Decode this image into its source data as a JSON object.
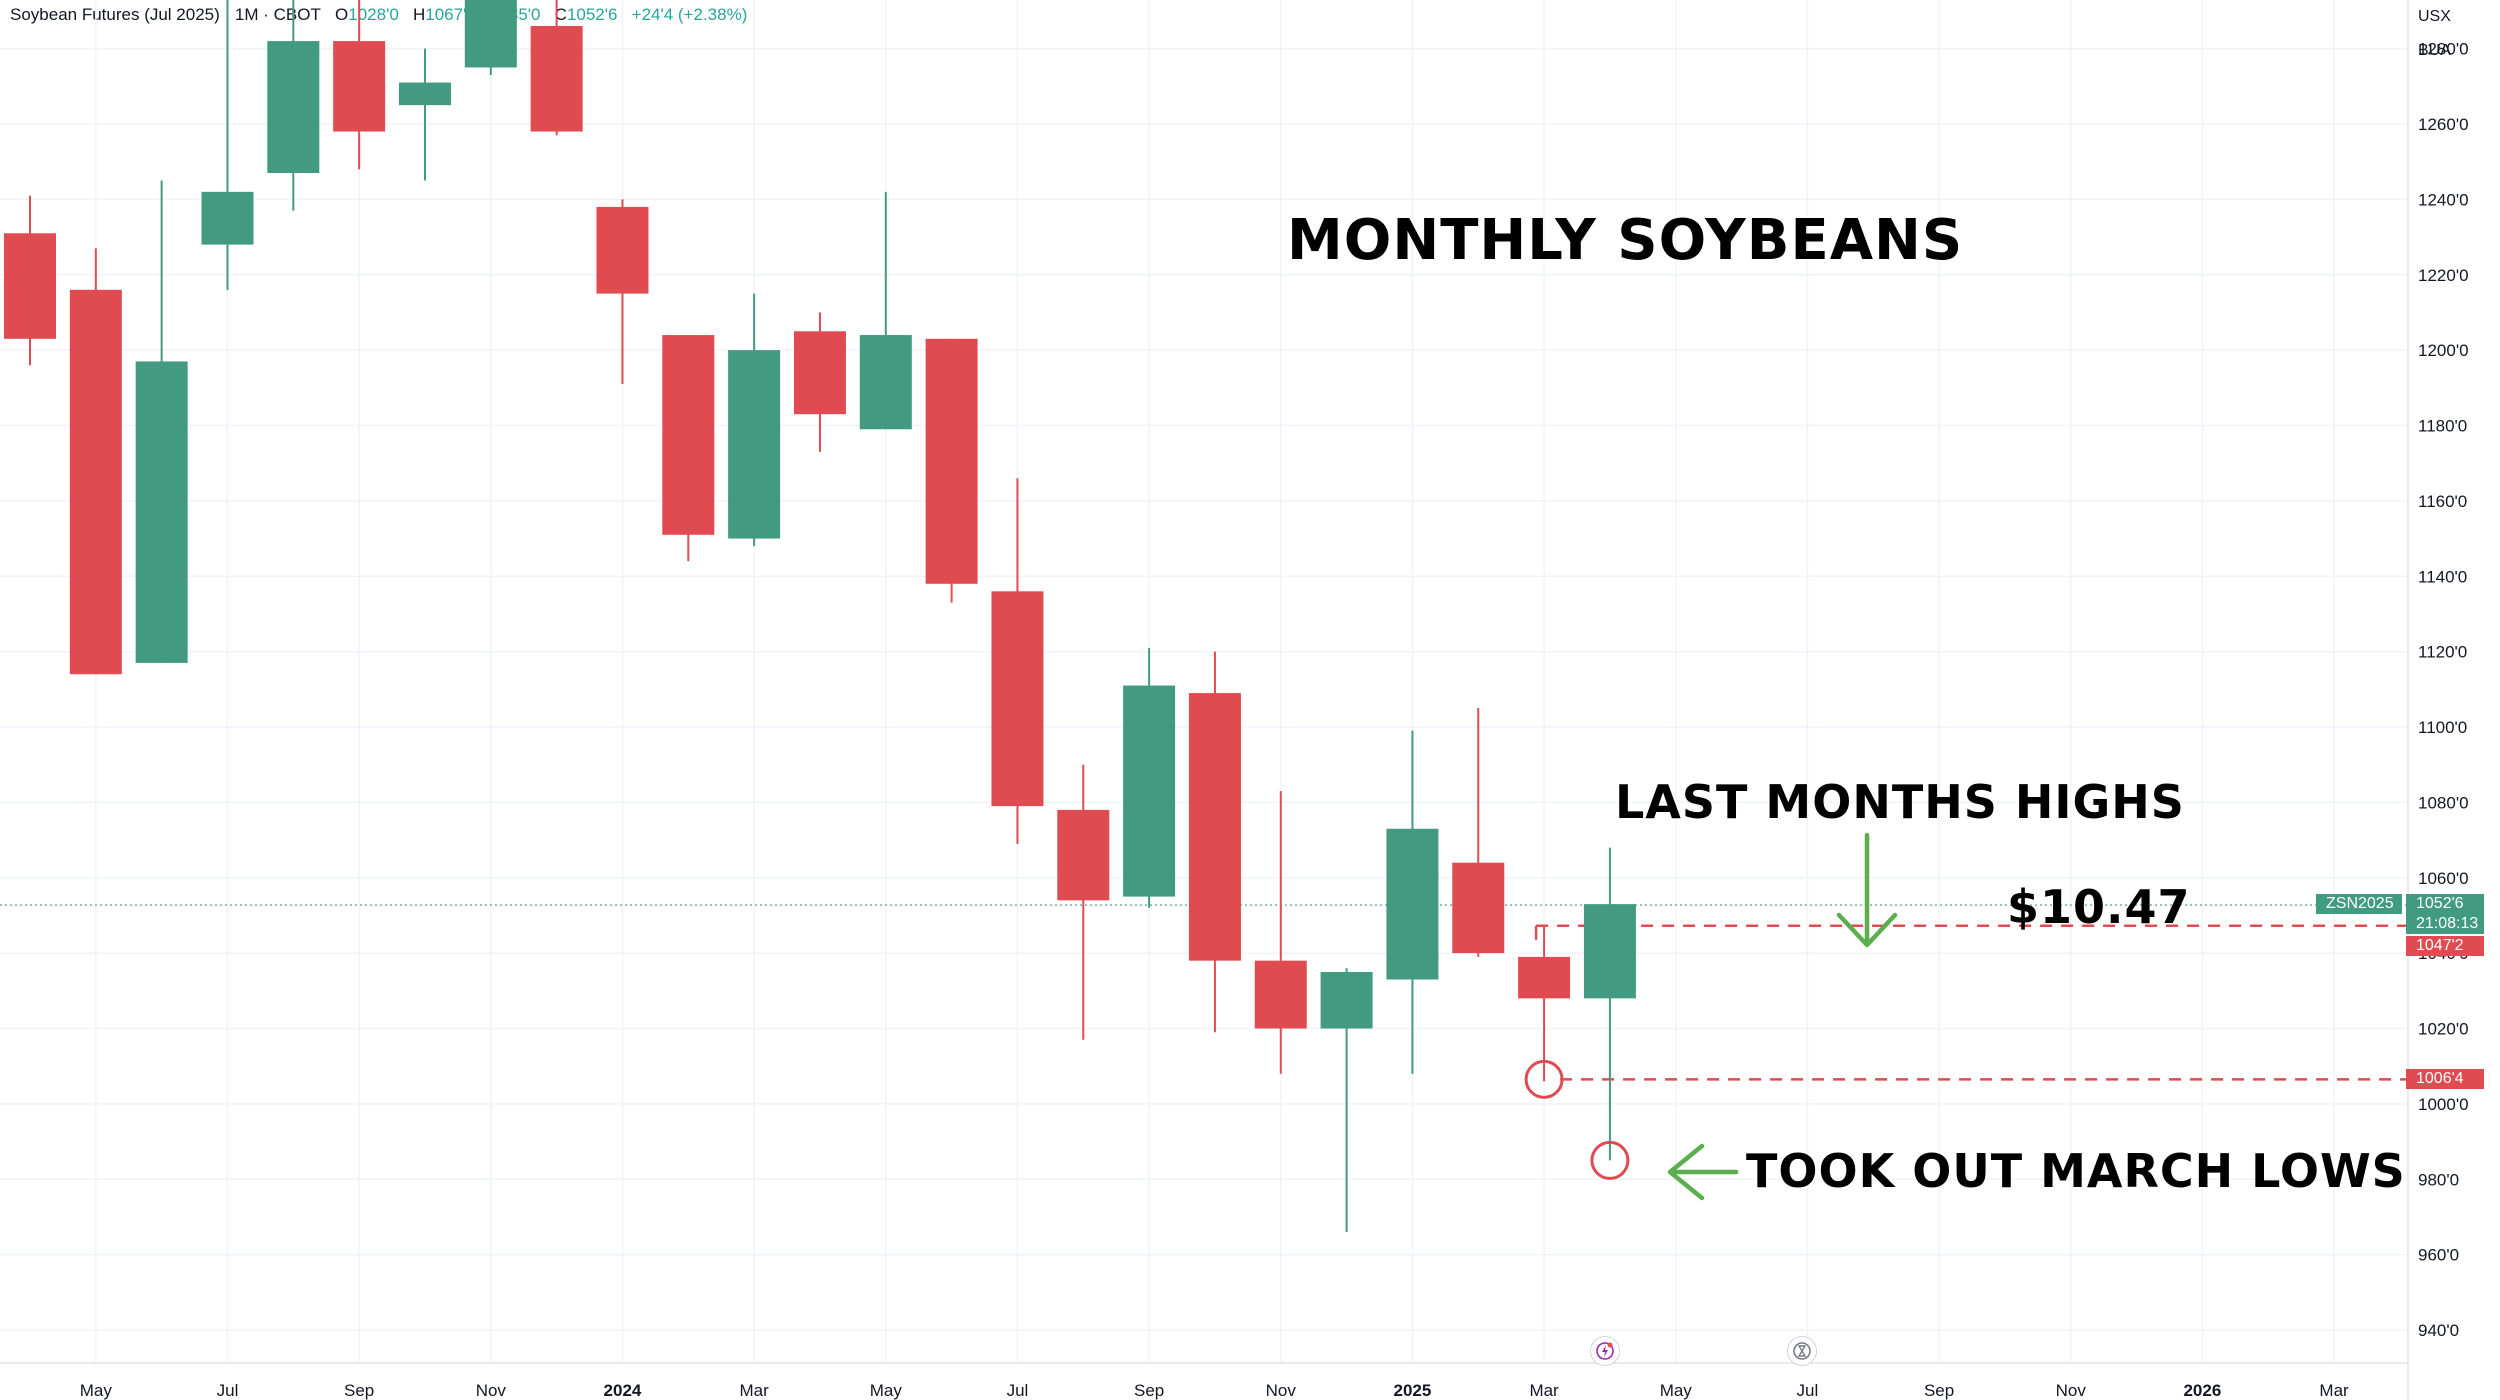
{
  "header": {
    "symbol": "Soybean Futures (Jul 2025) · 1M · CBOT",
    "open_label": "O",
    "open": "1028'0",
    "high_label": "H",
    "high": "1067'4",
    "low_label": "L",
    "low": "985'0",
    "close_label": "C",
    "close": "1052'6",
    "change": "+24'4 (+2.38%)"
  },
  "units": {
    "currency": "USX",
    "unit": "BUA"
  },
  "annotations": {
    "title": "MONTHLY SOYBEANS",
    "last_highs": "LAST MONTHS HIGHS",
    "price_note": "$10.47",
    "march_lows": "TOOK OUT MARCH LOWS"
  },
  "price_tags": {
    "symbol": "ZSN2025",
    "last": "1052'6",
    "countdown": "21:08:13",
    "high_line": "1047'2",
    "low_line": "1006'4"
  },
  "colors": {
    "up": "#429A80",
    "down": "#E04B51",
    "grid": "#F0F3FA",
    "dashed": "#E04B51",
    "arrow": "#5CAE4F"
  },
  "icons": [
    "lightning-icon",
    "hourglass-icon"
  ],
  "chart_data": {
    "type": "candlestick",
    "y_axis": {
      "ticks": [
        940,
        960,
        980,
        1000,
        1020,
        1040,
        1060,
        1080,
        1100,
        1120,
        1140,
        1160,
        1180,
        1200,
        1220,
        1240,
        1260,
        1280
      ],
      "tick_labels": [
        "940'0",
        "960'0",
        "980'0",
        "1000'0",
        "1020'0",
        "1040'0",
        "1060'0",
        "1080'0",
        "1100'0",
        "1120'0",
        "1140'0",
        "1160'0",
        "1180'0",
        "1200'0",
        "1220'0",
        "1240'0",
        "1260'0",
        "1280'0"
      ],
      "range": [
        925,
        1305
      ]
    },
    "x_axis": {
      "labels": [
        {
          "text": "May",
          "index": 1,
          "bold": false
        },
        {
          "text": "Jul",
          "index": 3,
          "bold": false
        },
        {
          "text": "Sep",
          "index": 5,
          "bold": false
        },
        {
          "text": "Nov",
          "index": 7,
          "bold": false
        },
        {
          "text": "2024",
          "index": 9,
          "bold": true
        },
        {
          "text": "Mar",
          "index": 11,
          "bold": false
        },
        {
          "text": "May",
          "index": 13,
          "bold": false
        },
        {
          "text": "Jul",
          "index": 15,
          "bold": false
        },
        {
          "text": "Sep",
          "index": 17,
          "bold": false
        },
        {
          "text": "Nov",
          "index": 19,
          "bold": false
        },
        {
          "text": "2025",
          "index": 21,
          "bold": true
        },
        {
          "text": "Mar",
          "index": 23,
          "bold": false
        },
        {
          "text": "May",
          "index": 25,
          "bold": false
        },
        {
          "text": "Jul",
          "index": 27,
          "bold": false
        },
        {
          "text": "Sep",
          "index": 29,
          "bold": false
        },
        {
          "text": "Nov",
          "index": 31,
          "bold": false
        },
        {
          "text": "2026",
          "index": 33,
          "bold": true
        },
        {
          "text": "Mar",
          "index": 35,
          "bold": false
        }
      ]
    },
    "candles": [
      {
        "month": "Apr 2023",
        "open": 1231,
        "high": 1241,
        "low": 1196,
        "close": 1203
      },
      {
        "month": "May 2023",
        "open": 1216,
        "high": 1227,
        "low": 1114,
        "close": 1114
      },
      {
        "month": "Jun 2023",
        "open": 1117,
        "high": 1245,
        "low": 1117,
        "close": 1197
      },
      {
        "month": "Jul 2023",
        "open": 1228,
        "high": 1295,
        "low": 1216,
        "close": 1242
      },
      {
        "month": "Aug 2023",
        "open": 1247,
        "high": 1303,
        "low": 1237,
        "close": 1282
      },
      {
        "month": "Sep 2023",
        "open": 1282,
        "high": 1293,
        "low": 1248,
        "close": 1258
      },
      {
        "month": "Oct 2023",
        "open": 1265,
        "high": 1280,
        "low": 1245,
        "close": 1271
      },
      {
        "month": "Nov 2023",
        "open": 1275,
        "high": 1309,
        "low": 1273,
        "close": 1295
      },
      {
        "month": "Dec 2023",
        "open": 1286,
        "high": 1295,
        "low": 1257,
        "close": 1258
      },
      {
        "month": "Jan 2024",
        "open": 1238,
        "high": 1240,
        "low": 1191,
        "close": 1215
      },
      {
        "month": "Feb 2024",
        "open": 1204,
        "high": 1204,
        "low": 1144,
        "close": 1151
      },
      {
        "month": "Mar 2024",
        "open": 1150,
        "high": 1215,
        "low": 1148,
        "close": 1200
      },
      {
        "month": "Apr 2024",
        "open": 1205,
        "high": 1210,
        "low": 1173,
        "close": 1183
      },
      {
        "month": "May 2024",
        "open": 1179,
        "high": 1242,
        "low": 1179,
        "close": 1204
      },
      {
        "month": "Jun 2024",
        "open": 1203,
        "high": 1203,
        "low": 1133,
        "close": 1138
      },
      {
        "month": "Jul 2024",
        "open": 1136,
        "high": 1166,
        "low": 1069,
        "close": 1079
      },
      {
        "month": "Aug 2024",
        "open": 1078,
        "high": 1090,
        "low": 1017,
        "close": 1054
      },
      {
        "month": "Sep 2024",
        "open": 1055,
        "high": 1121,
        "low": 1052,
        "close": 1111
      },
      {
        "month": "Oct 2024",
        "open": 1109,
        "high": 1120,
        "low": 1019,
        "close": 1038
      },
      {
        "month": "Nov 2024",
        "open": 1038,
        "high": 1083,
        "low": 1008,
        "close": 1020
      },
      {
        "month": "Dec 2024",
        "open": 1020,
        "high": 1036,
        "low": 966,
        "close": 1035
      },
      {
        "month": "Jan 2025",
        "open": 1033,
        "high": 1099,
        "low": 1008,
        "close": 1073
      },
      {
        "month": "Feb 2025",
        "open": 1064,
        "high": 1105,
        "low": 1039,
        "close": 1040
      },
      {
        "month": "Mar 2025",
        "open": 1039,
        "high": 1047,
        "low": 1006,
        "close": 1028
      },
      {
        "month": "Apr 2025",
        "open": 1028,
        "high": 1068,
        "low": 985,
        "close": 1053
      }
    ],
    "levels": [
      {
        "value": 1047.25,
        "label": "1047'2",
        "style": "dashed-red"
      },
      {
        "value": 1006.5,
        "label": "1006'4",
        "style": "dashed-red"
      },
      {
        "value": 1052.75,
        "label": "1052'6",
        "style": "dotted-green"
      }
    ]
  }
}
